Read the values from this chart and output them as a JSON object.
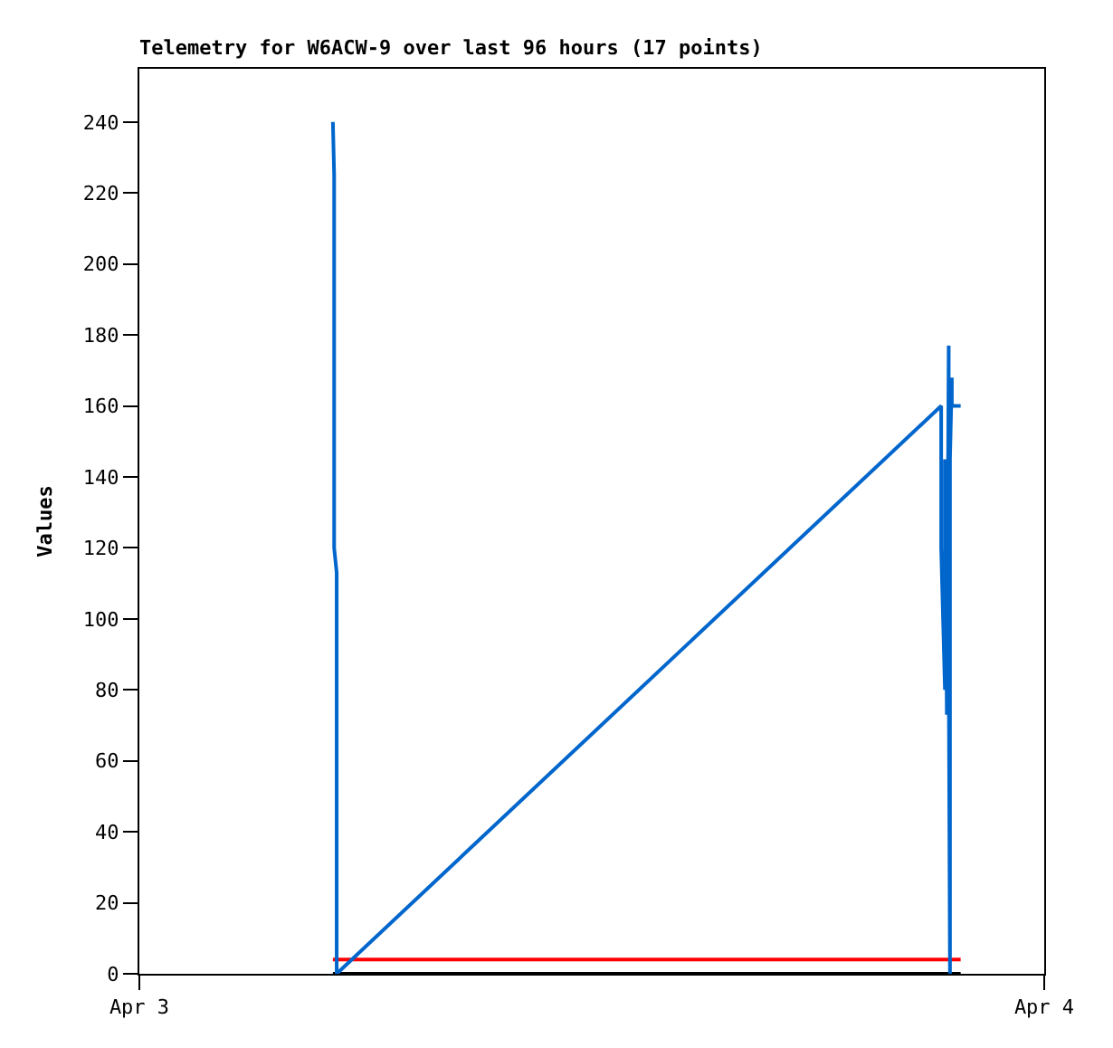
{
  "chart_data": {
    "type": "line",
    "title": "Telemetry for W6ACW-9 over last 96 hours (17 points)",
    "ylabel": "Values",
    "xlim": [
      "--04-03",
      "--04-04"
    ],
    "xticks": [
      {
        "value": "--04-03",
        "label": "Apr 3"
      },
      {
        "value": "--04-04",
        "label": "Apr 4"
      }
    ],
    "ylim": [
      0,
      255
    ],
    "yticks": [
      0,
      20,
      40,
      60,
      80,
      100,
      120,
      140,
      160,
      180,
      200,
      220,
      240
    ],
    "grid": false,
    "marker": "none",
    "line_style": "solid",
    "series": [
      {
        "color": "#000000",
        "x": [
          "--04-03T05:08",
          "--04-03T21:47"
        ],
        "values": [
          0,
          0
        ]
      },
      {
        "color": "#ff0000",
        "x": [
          "--04-03T05:08",
          "--04-03T21:47"
        ],
        "values": [
          4,
          4
        ]
      },
      {
        "color": "#0066cc",
        "x": [
          "--04-03T05:08",
          "--04-03T05:10",
          "--04-03T05:10",
          "--04-03T05:14",
          "--04-03T05:14",
          "--04-03T21:16",
          "--04-03T21:16",
          "--04-03T21:22",
          "--04-03T21:22",
          "--04-03T21:25",
          "--04-03T21:28",
          "--04-03T21:28",
          "--04-03T21:30",
          "--04-03T21:30",
          "--04-03T21:33",
          "--04-03T21:33",
          "--04-03T21:47"
        ],
        "values": [
          240,
          225,
          120,
          113,
          0,
          160,
          120,
          80,
          145,
          73,
          177,
          88,
          0,
          145,
          168,
          160,
          160
        ]
      }
    ]
  }
}
